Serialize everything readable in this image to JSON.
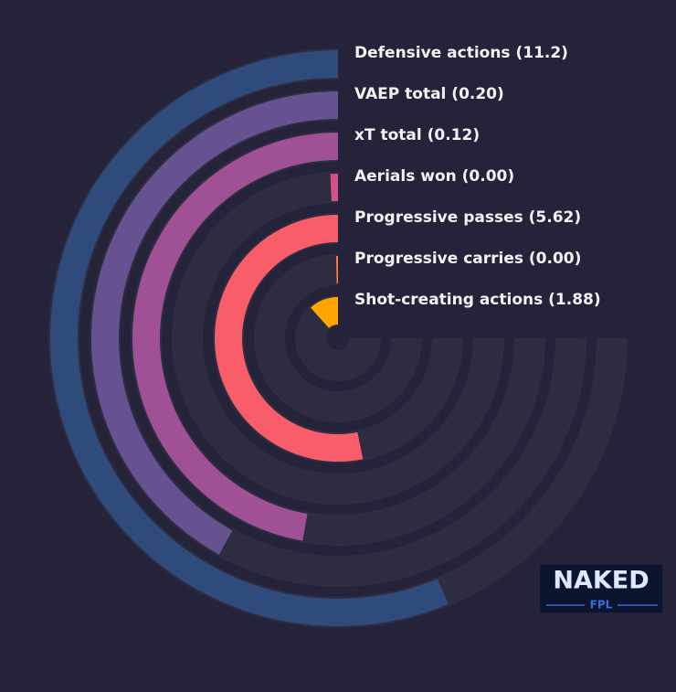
{
  "chart_data": {
    "type": "radial_bar",
    "categories": [
      "Defensive actions (11.2)",
      "VAEP total (0.20)",
      "xT total (0.12)",
      "Aerials won (0.00)",
      "Progressive passes (5.62)",
      "Progressive carries (0.00)",
      "Shot-creating actions (1.88)"
    ],
    "values": [
      75,
      56,
      63,
      1,
      71,
      0.5,
      15.5
    ],
    "colors": [
      "#2f4b7c",
      "#665191",
      "#a05195",
      "#d45087",
      "#f95d6a",
      "#ff7c43",
      "#ffa600"
    ],
    "rlim": [
      0,
      100
    ],
    "watermark": {
      "top": "NAKED",
      "bottom": "FPL"
    }
  }
}
